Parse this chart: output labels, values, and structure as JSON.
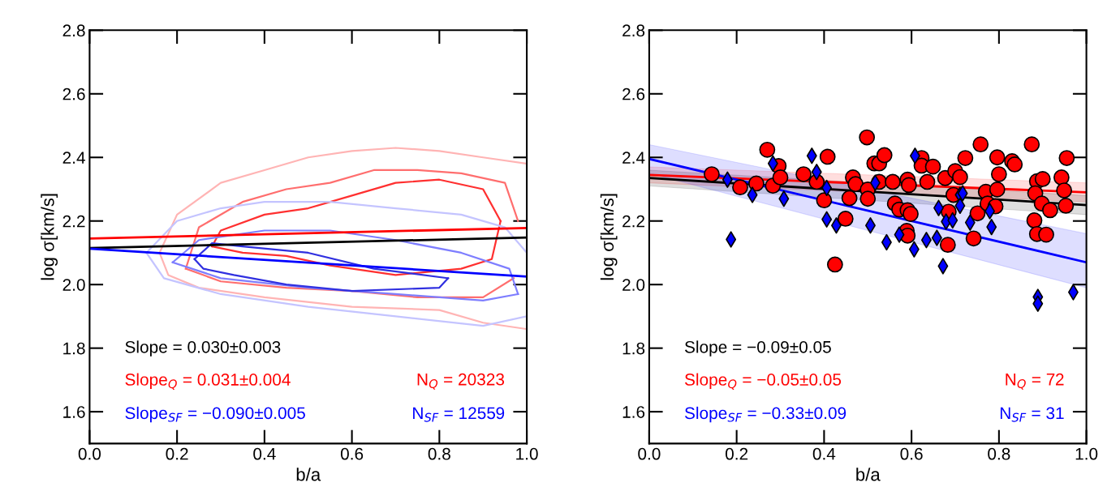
{
  "chart_data": [
    {
      "type": "line",
      "xlabel": "b/a",
      "ylabel": "log σ[km/s]",
      "xlim": [
        0.0,
        1.0
      ],
      "ylim": [
        1.5,
        2.8
      ],
      "xticks": [
        {
          "value": 0,
          "label": "0.0"
        },
        {
          "value": 0.2,
          "label": "0.2"
        },
        {
          "value": 0.4,
          "label": "0.4"
        },
        {
          "value": 0.6,
          "label": "0.6"
        },
        {
          "value": 0.8,
          "label": "0.8"
        },
        {
          "value": 1,
          "label": "1.0"
        }
      ],
      "yticks": [
        {
          "value": 1.6,
          "label": "1.6"
        },
        {
          "value": 1.8,
          "label": "1.8"
        },
        {
          "value": 2,
          "label": "2.0"
        },
        {
          "value": 2.2,
          "label": "2.2"
        },
        {
          "value": 2.4,
          "label": "2.4"
        },
        {
          "value": 2.6,
          "label": "2.6"
        },
        {
          "value": 2.8,
          "label": "2.8"
        }
      ],
      "grid": false,
      "marker": "none",
      "line_style": "solid",
      "series": [
        {
          "color": "#ffb4b4",
          "x": [
            0.16,
            0.2,
            0.3,
            0.4,
            0.5,
            0.6,
            0.7,
            0.8,
            0.9,
            1.0
          ],
          "values": [
            2.1,
            2.22,
            2.32,
            2.36,
            2.4,
            2.42,
            2.43,
            2.42,
            2.4,
            2.38
          ]
        },
        {
          "color": "#ffb4b4",
          "x": [
            0.16,
            0.18,
            0.25,
            0.4,
            0.6,
            0.8,
            0.9,
            1.0
          ],
          "values": [
            2.1,
            2.03,
            1.99,
            1.96,
            1.93,
            1.92,
            1.88,
            1.86
          ]
        },
        {
          "color": "#ff6e6e",
          "x": [
            0.22,
            0.25,
            0.35,
            0.45,
            0.55,
            0.65,
            0.75,
            0.85,
            0.95,
            0.98
          ],
          "values": [
            2.05,
            2.18,
            2.26,
            2.3,
            2.32,
            2.36,
            2.36,
            2.35,
            2.32,
            2.2
          ]
        },
        {
          "color": "#ff6e6e",
          "x": [
            0.22,
            0.3,
            0.45,
            0.6,
            0.75,
            0.9,
            0.97
          ],
          "values": [
            2.05,
            2.01,
            1.99,
            1.98,
            1.96,
            1.96,
            2.02
          ]
        },
        {
          "color": "#ff3030",
          "x": [
            0.28,
            0.3,
            0.4,
            0.5,
            0.6,
            0.7,
            0.8,
            0.9,
            0.94
          ],
          "values": [
            2.12,
            2.17,
            2.22,
            2.24,
            2.28,
            2.32,
            2.33,
            2.3,
            2.2
          ]
        },
        {
          "color": "#ff3030",
          "x": [
            0.28,
            0.35,
            0.45,
            0.55,
            0.7,
            0.85,
            0.92,
            0.94
          ],
          "values": [
            2.12,
            2.1,
            2.09,
            2.06,
            2.03,
            2.05,
            2.08,
            2.2
          ]
        },
        {
          "color": "#c4c4ff",
          "x": [
            0.13,
            0.2,
            0.3,
            0.4,
            0.55,
            0.7,
            0.85,
            0.95,
            1.0
          ],
          "values": [
            2.1,
            2.2,
            2.24,
            2.26,
            2.26,
            2.24,
            2.22,
            2.18,
            2.1
          ]
        },
        {
          "color": "#c4c4ff",
          "x": [
            0.13,
            0.17,
            0.3,
            0.5,
            0.7,
            0.9,
            1.0
          ],
          "values": [
            2.1,
            2.02,
            1.97,
            1.93,
            1.9,
            1.87,
            1.9
          ]
        },
        {
          "color": "#7e7eff",
          "x": [
            0.19,
            0.25,
            0.4,
            0.55,
            0.7,
            0.85,
            0.96,
            0.98
          ],
          "values": [
            2.07,
            2.14,
            2.17,
            2.17,
            2.14,
            2.1,
            2.05,
            1.97
          ]
        },
        {
          "color": "#7e7eff",
          "x": [
            0.19,
            0.3,
            0.5,
            0.7,
            0.9,
            0.98
          ],
          "values": [
            2.07,
            2.02,
            1.99,
            1.97,
            1.95,
            1.97
          ]
        },
        {
          "color": "#3030e0",
          "x": [
            0.24,
            0.28,
            0.35,
            0.5,
            0.65,
            0.82
          ],
          "values": [
            2.08,
            2.13,
            2.12,
            2.1,
            2.05,
            2.02
          ]
        },
        {
          "color": "#3030e0",
          "x": [
            0.24,
            0.26,
            0.33,
            0.45,
            0.6,
            0.8,
            0.82
          ],
          "values": [
            2.08,
            2.05,
            2.03,
            2.0,
            1.98,
            1.99,
            2.02
          ]
        },
        {
          "color": "#ff0000",
          "x": [
            0.0,
            1.0
          ],
          "values": [
            2.145,
            2.178
          ]
        },
        {
          "color": "#000000",
          "x": [
            0.0,
            1.0
          ],
          "values": [
            2.115,
            2.148
          ]
        },
        {
          "color": "#0000ff",
          "x": [
            0.0,
            1.0
          ],
          "values": [
            2.113,
            2.025
          ]
        }
      ],
      "annotations": [
        "Slope = 0.030±0.003",
        "Slope$_{Q}$ = 0.031±0.004",
        "N$_{Q}$ = 20323",
        "Slope$_{SF}$ = −0.090±0.005",
        "N$_{SF}$ = 12559"
      ]
    },
    {
      "type": "scatter",
      "xlabel": "b/a",
      "ylabel": "log σ[km/s]",
      "xlim": [
        0.0,
        1.0
      ],
      "ylim": [
        1.5,
        2.8
      ],
      "xticks": [
        {
          "value": 0,
          "label": "0.0"
        },
        {
          "value": 0.2,
          "label": "0.2"
        },
        {
          "value": 0.4,
          "label": "0.4"
        },
        {
          "value": 0.6,
          "label": "0.6"
        },
        {
          "value": 0.8,
          "label": "0.8"
        },
        {
          "value": 1,
          "label": "1.0"
        }
      ],
      "yticks": [
        {
          "value": 1.6,
          "label": "1.6"
        },
        {
          "value": 1.8,
          "label": "1.8"
        },
        {
          "value": 2,
          "label": "2.0"
        },
        {
          "value": 2.2,
          "label": "2.2"
        },
        {
          "value": 2.4,
          "label": "2.4"
        },
        {
          "value": 2.6,
          "label": "2.6"
        },
        {
          "value": 2.8,
          "label": "2.8"
        }
      ],
      "grid": false,
      "series": [
        {
          "type": "line",
          "color": "#ff0000",
          "x": [
            0.0,
            1.0
          ],
          "values": [
            2.345,
            2.29
          ],
          "lower": [
            2.32,
            2.26
          ],
          "upper": [
            2.37,
            2.32
          ],
          "marker": "none"
        },
        {
          "type": "line",
          "color": "#000000",
          "x": [
            0.0,
            1.0
          ],
          "values": [
            2.335,
            2.25
          ],
          "lower": [
            2.31,
            2.22
          ],
          "upper": [
            2.36,
            2.28
          ],
          "marker": "none"
        },
        {
          "type": "line",
          "color": "#0000ff",
          "x": [
            0.0,
            1.0
          ],
          "values": [
            2.395,
            2.07
          ],
          "lower": [
            2.35,
            1.99
          ],
          "upper": [
            2.44,
            2.16
          ],
          "marker": "none"
        },
        {
          "color": "#ff0000",
          "marker": "circle",
          "x": [
            0.143,
            0.208,
            0.245,
            0.283,
            0.27,
            0.296,
            0.3,
            0.353,
            0.383,
            0.408,
            0.4,
            0.449,
            0.425,
            0.466,
            0.472,
            0.458,
            0.5,
            0.5,
            0.498,
            0.515,
            0.526,
            0.538,
            0.526,
            0.557,
            0.591,
            0.594,
            0.623,
            0.623,
            0.649,
            0.636,
            0.677,
            0.7,
            0.711,
            0.696,
            0.562,
            0.572,
            0.591,
            0.598,
            0.589,
            0.591,
            0.685,
            0.683,
            0.723,
            0.758,
            0.742,
            0.751,
            0.77,
            0.774,
            0.796,
            0.8,
            0.796,
            0.792,
            0.83,
            0.836,
            0.875,
            0.887,
            0.9,
            0.883,
            0.898,
            0.917,
            0.881,
            0.887,
            0.908,
            0.943,
            0.949,
            0.953,
            0.955
          ],
          "values": [
            2.347,
            2.306,
            2.318,
            2.311,
            2.424,
            2.373,
            2.337,
            2.347,
            2.323,
            2.402,
            2.265,
            2.207,
            2.063,
            2.337,
            2.316,
            2.272,
            2.299,
            2.27,
            2.463,
            2.381,
            2.381,
            2.407,
            2.323,
            2.323,
            2.33,
            2.313,
            2.398,
            2.374,
            2.371,
            2.323,
            2.335,
            2.357,
            2.338,
            2.282,
            2.255,
            2.236,
            2.234,
            2.222,
            2.169,
            2.154,
            2.229,
            2.125,
            2.398,
            2.441,
            2.145,
            2.224,
            2.292,
            2.255,
            2.4,
            2.347,
            2.299,
            2.246,
            2.388,
            2.378,
            2.441,
            2.325,
            2.332,
            2.287,
            2.255,
            2.234,
            2.202,
            2.159,
            2.157,
            2.337,
            2.296,
            2.248,
            2.398
          ]
        },
        {
          "color": "#0000ff",
          "marker": "diamond",
          "x": [
            0.179,
            0.187,
            0.236,
            0.283,
            0.308,
            0.372,
            0.383,
            0.406,
            0.406,
            0.428,
            0.506,
            0.517,
            0.543,
            0.572,
            0.608,
            0.606,
            0.634,
            0.658,
            0.662,
            0.672,
            0.679,
            0.694,
            0.711,
            0.717,
            0.711,
            0.734,
            0.779,
            0.783,
            0.889,
            0.889,
            0.97
          ],
          "values": [
            2.33,
            2.142,
            2.282,
            2.381,
            2.27,
            2.405,
            2.354,
            2.304,
            2.205,
            2.186,
            2.186,
            2.32,
            2.133,
            2.157,
            2.405,
            2.111,
            2.14,
            2.147,
            2.241,
            2.058,
            2.198,
            2.202,
            2.282,
            2.287,
            2.248,
            2.195,
            2.231,
            2.181,
            1.961,
            1.94,
            1.976
          ]
        }
      ],
      "annotations": [
        "Slope = −0.09±0.05",
        "Slope$_{Q}$ = −0.05±0.05",
        "N$_{Q}$ = 72",
        "Slope$_{SF}$ = −0.33±0.09",
        "N$_{SF}$ = 31"
      ]
    }
  ]
}
